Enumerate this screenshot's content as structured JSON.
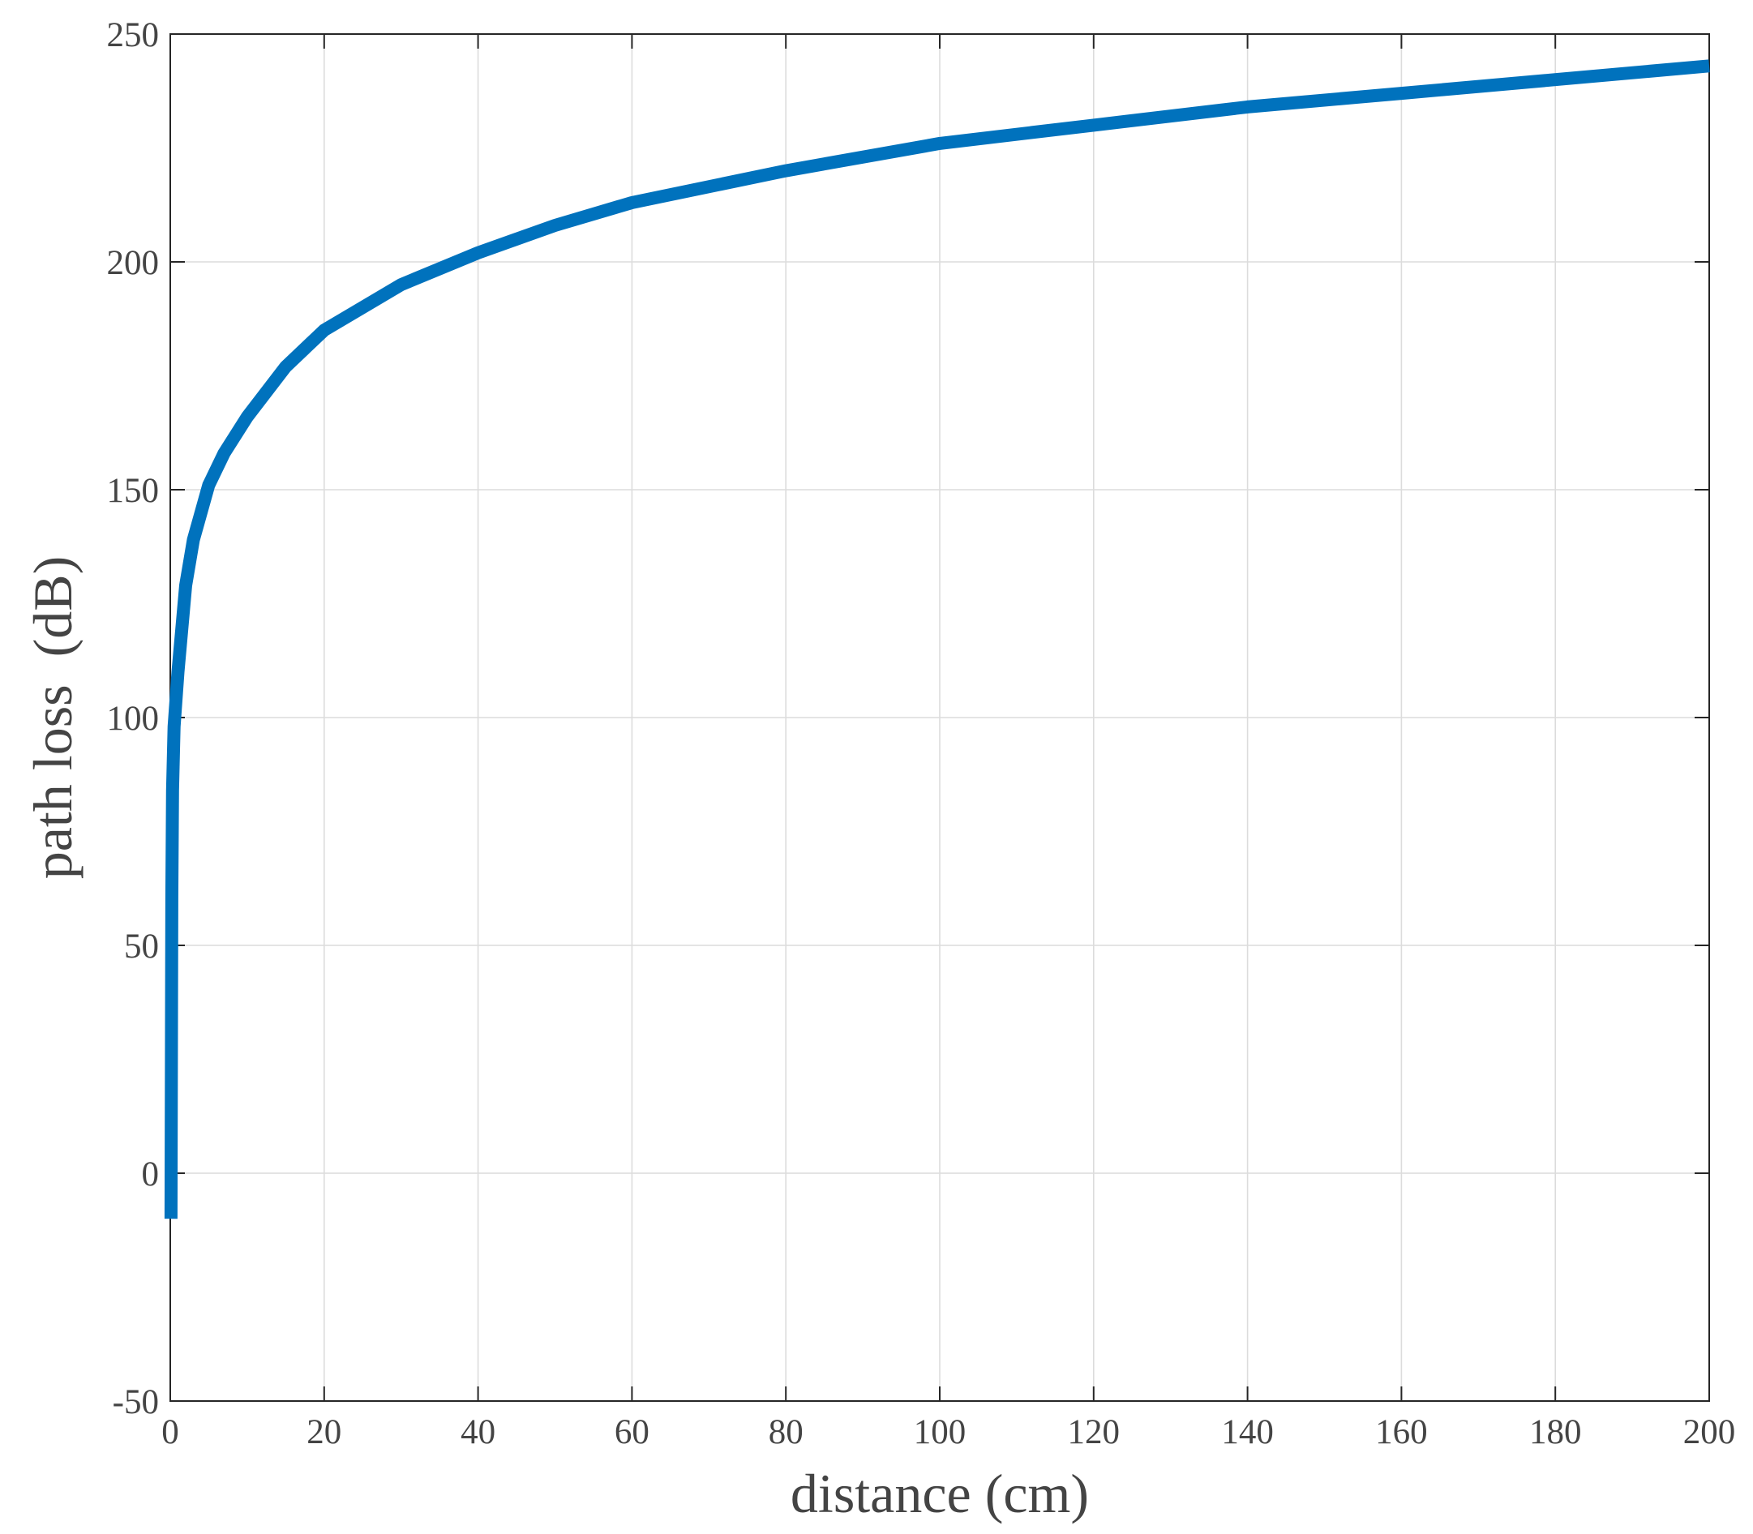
{
  "chart_data": {
    "type": "line",
    "title": "",
    "xlabel": "distance (cm)",
    "ylabel": "path loss  (dB)",
    "xlim": [
      0,
      200
    ],
    "ylim": [
      -50,
      250
    ],
    "xticks": [
      0,
      20,
      40,
      60,
      80,
      100,
      120,
      140,
      160,
      180,
      200
    ],
    "yticks": [
      -50,
      0,
      50,
      100,
      150,
      200,
      250
    ],
    "xtick_labels": [
      "0",
      "20",
      "40",
      "60",
      "80",
      "100",
      "120",
      "140",
      "160",
      "180",
      "200"
    ],
    "ytick_labels": [
      "-50",
      "0",
      "50",
      "100",
      "150",
      "200",
      "250"
    ],
    "grid": true,
    "series": [
      {
        "color": "#0072BD",
        "x": [
          0.1,
          0.2,
          0.3,
          0.5,
          1,
          2,
          3,
          5,
          7,
          10,
          15,
          20,
          30,
          40,
          50,
          60,
          80,
          100,
          120,
          140,
          160,
          180,
          200
        ],
        "y": [
          -10,
          60,
          84,
          98,
          110,
          129,
          139,
          151,
          158,
          166,
          177,
          185,
          195,
          202,
          208,
          213,
          220,
          226,
          230,
          234,
          237,
          240,
          243
        ]
      }
    ]
  }
}
